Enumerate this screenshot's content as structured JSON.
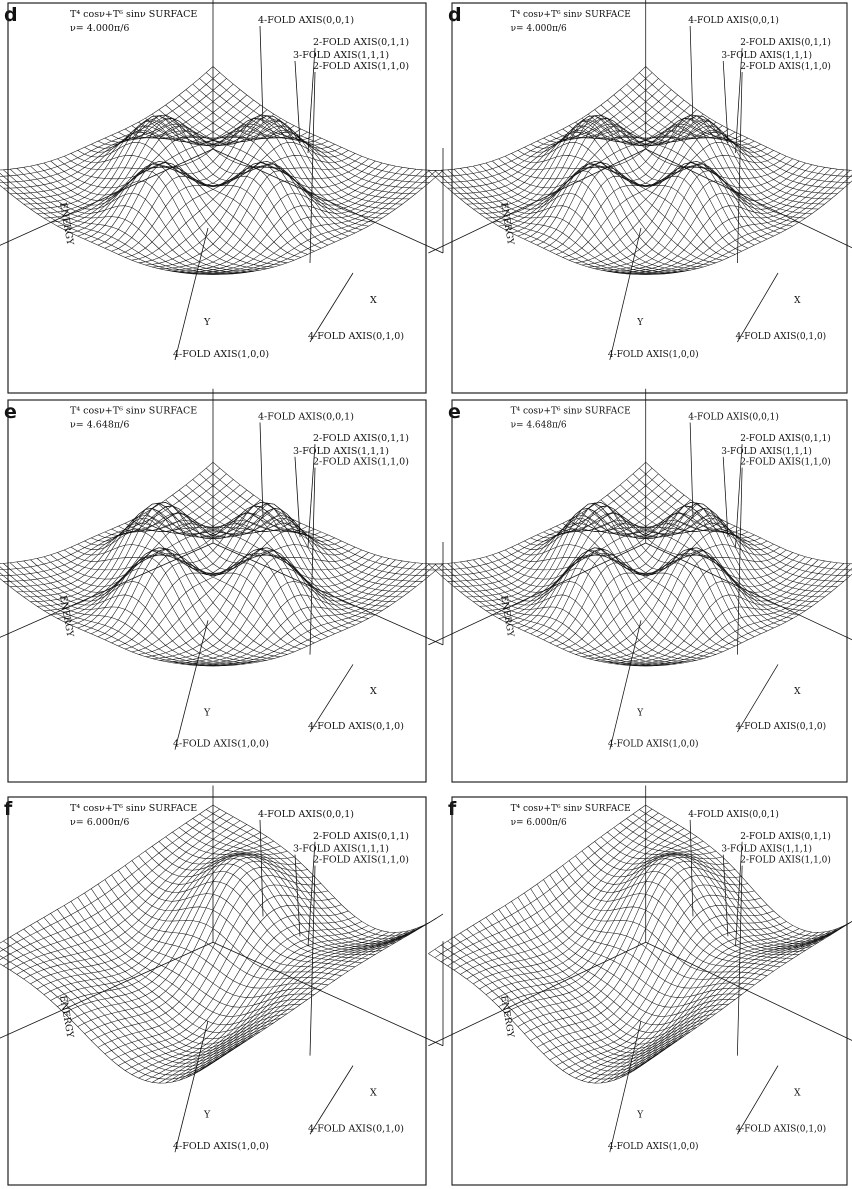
{
  "panels": [
    {
      "label": "d",
      "title": "T⁴ cosν+T⁶ sinν SURFACE",
      "nu": "ν= 4.000π/6",
      "annotations": [
        "4-FOLD AXIS(0,0,1)",
        "2-FOLD AXIS(0,1,1)",
        "3-FOLD AXIS(1,1,1)",
        "2-FOLD AXIS(1,1,0)",
        "4-FOLD AXIS(1,0,0)",
        "4-FOLD AXIS(0,1,0)"
      ],
      "axis_labels": {
        "energy": "ENERGY",
        "y": "Y",
        "x": "X"
      }
    },
    {
      "label": "d",
      "title": "T⁴ cosν+T⁶ sinν SURFACE",
      "nu": "ν= 4.000π/6",
      "annotations": [
        "4-FOLD AXIS(0,0,1)",
        "2-FOLD AXIS(0,1,1)",
        "3-FOLD AXIS(1,1,1)",
        "2-FOLD AXIS(1,1,0)",
        "4-FOLD AXIS(1,0,0)",
        "4-FOLD AXIS(0,1,0)"
      ],
      "axis_labels": {
        "energy": "ENERGY",
        "y": "Y",
        "x": "X"
      }
    },
    {
      "label": "e",
      "title": "T⁴ cosν+T⁶ sinν SURFACE",
      "nu": "ν= 4.648π/6",
      "annotations": [
        "4-FOLD AXIS(0,0,1)",
        "2-FOLD AXIS(0,1,1)",
        "3-FOLD AXIS(1,1,1)",
        "2-FOLD AXIS(1,1,0)",
        "4-FOLD AXIS(1,0,0)",
        "4-FOLD AXIS(0,1,0)"
      ],
      "axis_labels": {
        "energy": "ENERGY",
        "y": "Y",
        "x": "X"
      }
    },
    {
      "label": "e",
      "title": "T⁴ cosν+T⁶ sinν SURFACE",
      "nu": "ν= 4.648π/6",
      "annotations": [
        "4-FOLD AXIS(0,0,1)",
        "2-FOLD AXIS(0,1,1)",
        "3-FOLD AXIS(1,1,1)",
        "2-FOLD AXIS(1,1,0)",
        "4-FOLD AXIS(1,0,0)",
        "4-FOLD AXIS(0,1,0)"
      ],
      "axis_labels": {
        "energy": "ENERGY",
        "y": "Y",
        "x": "X"
      }
    },
    {
      "label": "f",
      "title": "T⁴ cosν+T⁶ sinν SURFACE",
      "nu": "ν= 6.000π/6",
      "annotations": [
        "4-FOLD AXIS(0,0,1)",
        "2-FOLD AXIS(0,1,1)",
        "3-FOLD AXIS(1,1,1)",
        "2-FOLD AXIS(1,1,0)",
        "4-FOLD AXIS(1,0,0)",
        "4-FOLD AXIS(0,1,0)"
      ],
      "axis_labels": {
        "energy": "ENERGY",
        "y": "Y",
        "x": "X"
      }
    },
    {
      "label": "f",
      "title": "T⁴ cosν+T⁶ sinν SURFACE",
      "nu": "ν= 6.000π/6",
      "annotations": [
        "4-FOLD AXIS(0,0,1)",
        "2-FOLD AXIS(0,1,1)",
        "3-FOLD AXIS(1,1,1)",
        "2-FOLD AXIS(1,1,0)",
        "4-FOLD AXIS(1,0,0)",
        "4-FOLD AXIS(0,1,0)"
      ],
      "axis_labels": {
        "energy": "ENERGY",
        "y": "Y",
        "x": "X"
      }
    }
  ]
}
